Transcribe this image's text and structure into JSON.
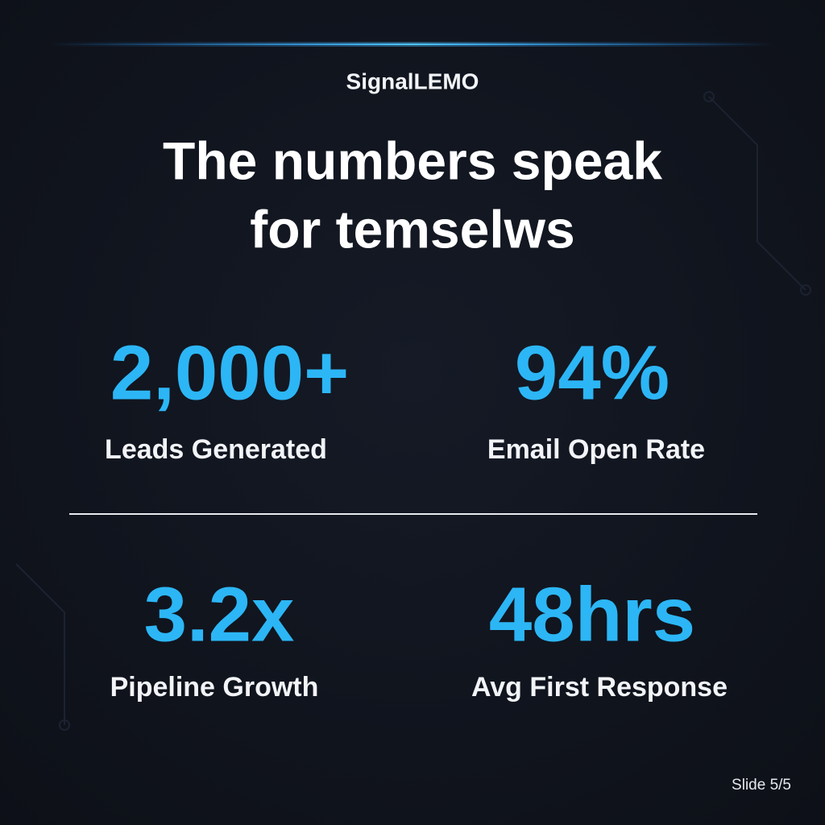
{
  "header": {
    "brand": "SignalLEMO",
    "title_lines": [
      "The numbers speak",
      "for temselws"
    ]
  },
  "stats": [
    {
      "value": "2,000+",
      "label": "Leads Generated"
    },
    {
      "value": "94%",
      "label": "Email Open Rate"
    },
    {
      "value": "3.2x",
      "label": "Pipeline Growth"
    },
    {
      "value": "48hrs",
      "label": "Avg First Response"
    }
  ],
  "footer": {
    "slide": "Slide 5/5"
  }
}
